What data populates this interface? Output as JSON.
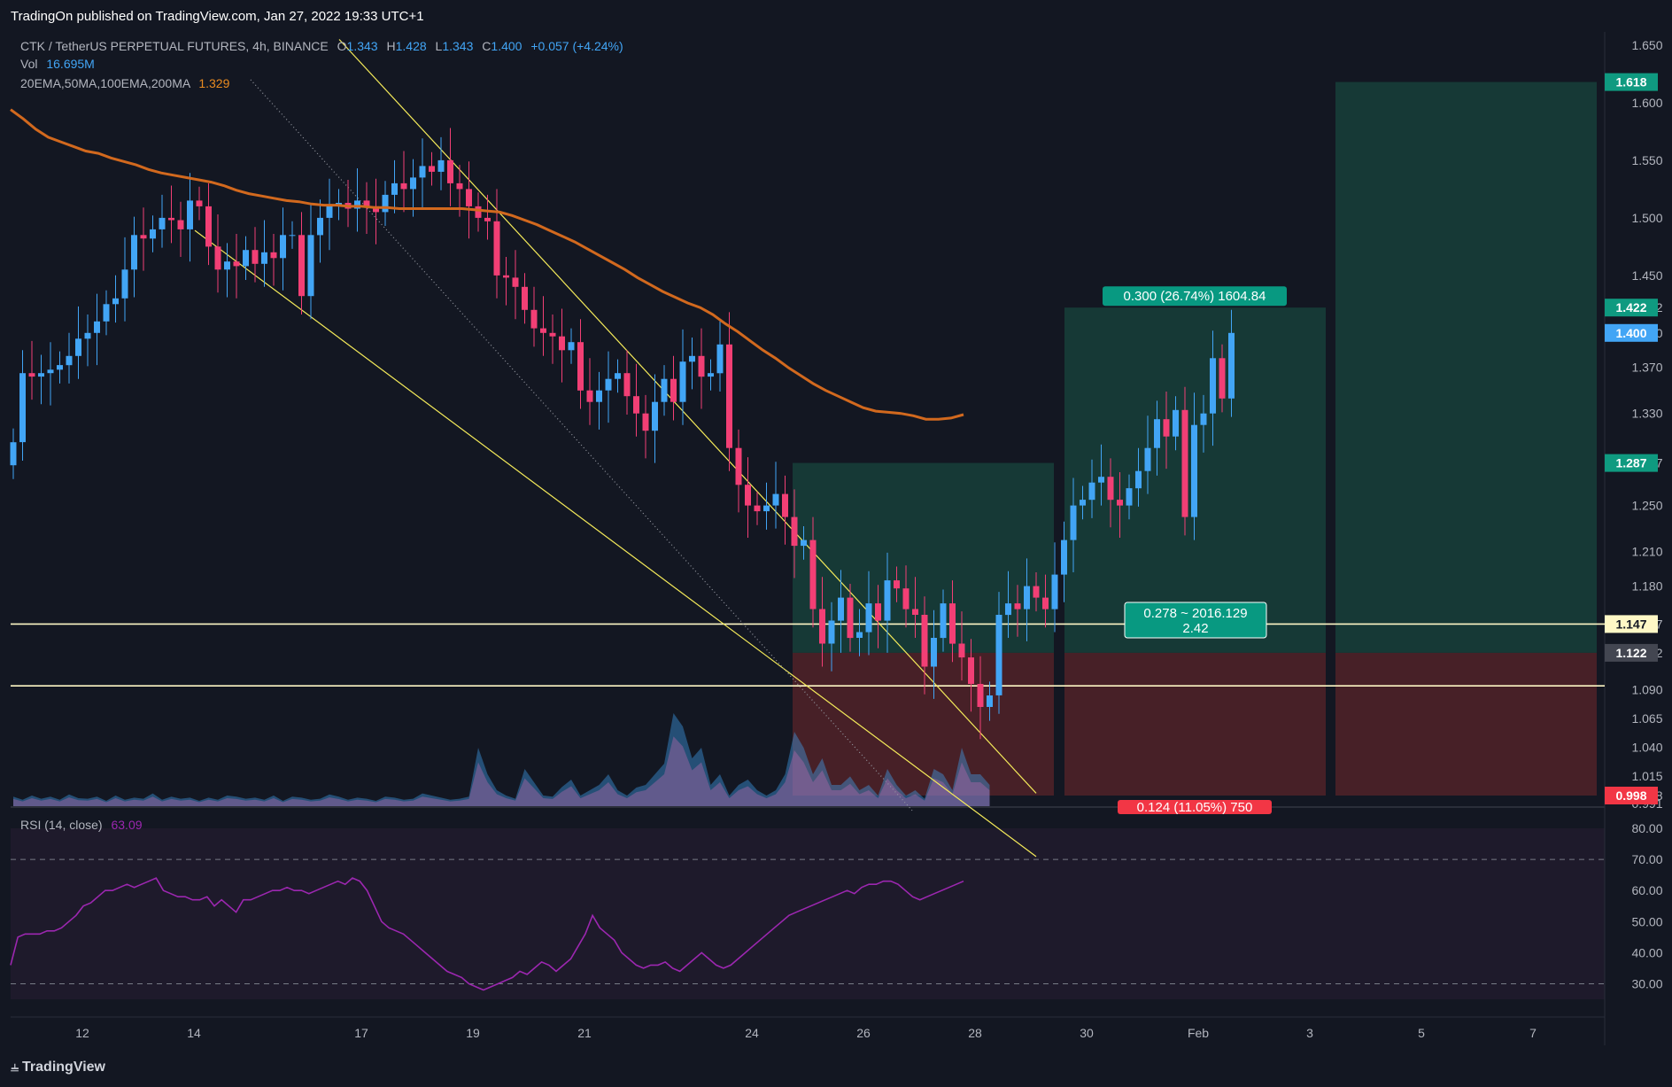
{
  "header": {
    "publisher": "TradingOn published on TradingView.com, Jan 27, 2022 19:33 UTC+1"
  },
  "legend": {
    "symbol": "CTK / TetherUS PERPETUAL FUTURES, 4h, BINANCE",
    "o_label": "O",
    "o_value": "1.343",
    "h_label": "H",
    "h_value": "1.428",
    "l_label": "L",
    "l_value": "1.343",
    "c_label": "C",
    "c_value": "1.400",
    "change": "+0.057 (+4.24%)",
    "vol_label": "Vol",
    "vol_value": "16.695M",
    "ma_label": "20EMA,50MA,100EMA,200MA",
    "ma_value": "1.329",
    "rsi_label": "RSI (14, close)",
    "rsi_value": "63.09"
  },
  "footer": {
    "brand": "TradingView"
  },
  "colors": {
    "background": "#131722",
    "up": "#42a5f5",
    "down": "#f23f75",
    "ma": "#d2691e",
    "channel": "#f5eb5a",
    "rsi": "#9c27b0",
    "target_zone": "#163b38",
    "stop_zone": "#4a2128",
    "hline": "#fff8c6"
  },
  "chart_data": {
    "type": "candlestick",
    "title": "CTK / TetherUS PERPETUAL FUTURES, 4h, BINANCE",
    "interval": "4h",
    "price_axis": {
      "ticks": [
        "1.650",
        "1.600",
        "1.550",
        "1.500",
        "1.450",
        "1.422",
        "1.400",
        "1.370",
        "1.330",
        "1.287",
        "1.250",
        "1.210",
        "1.180",
        "1.147",
        "1.122",
        "1.090",
        "1.065",
        "1.040",
        "1.015",
        "0.998",
        "0.991"
      ],
      "range": [
        0.975,
        1.665
      ]
    },
    "time_axis": {
      "ticks": [
        "12",
        "14",
        "17",
        "19",
        "21",
        "24",
        "26",
        "28",
        "30",
        "Feb",
        "3",
        "5",
        "7"
      ]
    },
    "price_labels": [
      {
        "text": "1.618",
        "value": 1.618,
        "color": "#0f9a80"
      },
      {
        "text": "1.422",
        "value": 1.422,
        "color": "#0f9a80"
      },
      {
        "text": "1.400",
        "value": 1.4,
        "color": "#42a5f5"
      },
      {
        "text": "1.287",
        "value": 1.287,
        "color": "#0f9a80"
      },
      {
        "text": "1.147",
        "value": 1.147,
        "color": "#fff8c6"
      },
      {
        "text": "1.122",
        "value": 1.122,
        "color": "#434651"
      },
      {
        "text": "0.998",
        "value": 0.998,
        "color": "#f23645"
      }
    ],
    "horizontal_lines": [
      1.147,
      1.0933
    ],
    "closes": [
      1.305,
      1.365,
      1.362,
      1.365,
      1.368,
      1.372,
      1.38,
      1.395,
      1.4,
      1.41,
      1.425,
      1.43,
      1.455,
      1.485,
      1.482,
      1.49,
      1.5,
      1.498,
      1.49,
      1.515,
      1.51,
      1.475,
      1.455,
      1.462,
      1.458,
      1.472,
      1.46,
      1.47,
      1.465,
      1.485,
      1.485,
      1.432,
      1.485,
      1.5,
      1.51,
      1.513,
      1.508,
      1.515,
      1.51,
      1.505,
      1.52,
      1.53,
      1.525,
      1.535,
      1.545,
      1.54,
      1.55,
      1.53,
      1.525,
      1.51,
      1.5,
      1.497,
      1.45,
      1.448,
      1.44,
      1.42,
      1.404,
      1.4,
      1.397,
      1.385,
      1.392,
      1.35,
      1.34,
      1.35,
      1.36,
      1.365,
      1.345,
      1.33,
      1.315,
      1.34,
      1.36,
      1.34,
      1.375,
      1.38,
      1.362,
      1.365,
      1.39,
      1.3,
      1.268,
      1.25,
      1.245,
      1.25,
      1.26,
      1.24,
      1.215,
      1.22,
      1.16,
      1.13,
      1.15,
      1.17,
      1.135,
      1.14,
      1.165,
      1.15,
      1.185,
      1.178,
      1.16,
      1.155,
      1.11,
      1.135,
      1.165,
      1.13,
      1.118,
      1.095,
      1.075,
      1.085,
      1.155,
      1.165,
      1.16,
      1.18,
      1.17,
      1.16,
      1.19,
      1.22,
      1.25,
      1.255,
      1.27,
      1.275,
      1.255,
      1.25,
      1.265,
      1.28,
      1.3,
      1.325,
      1.31,
      1.333,
      1.24,
      1.32,
      1.33,
      1.378,
      1.343,
      1.4
    ],
    "ma": [
      1.594,
      1.586,
      1.577,
      1.57,
      1.566,
      1.562,
      1.558,
      1.556,
      1.552,
      1.549,
      1.546,
      1.542,
      1.539,
      1.537,
      1.535,
      1.533,
      1.531,
      1.528,
      1.524,
      1.521,
      1.519,
      1.517,
      1.515,
      1.514,
      1.512,
      1.511,
      1.511,
      1.51,
      1.51,
      1.509,
      1.509,
      1.508,
      1.508,
      1.508,
      1.508,
      1.508,
      1.508,
      1.507,
      1.506,
      1.505,
      1.502,
      1.498,
      1.494,
      1.489,
      1.484,
      1.479,
      1.473,
      1.467,
      1.461,
      1.455,
      1.448,
      1.442,
      1.436,
      1.431,
      1.426,
      1.422,
      1.416,
      1.408,
      1.401,
      1.393,
      1.385,
      1.378,
      1.37,
      1.363,
      1.356,
      1.35,
      1.345,
      1.34,
      1.335,
      1.332,
      1.331,
      1.33,
      1.328,
      1.325,
      1.325,
      1.326,
      1.329
    ],
    "volume": {
      "peak_label": "volume bars overlaid at bottom of price pane"
    },
    "channel": [
      {
        "from": [
          220,
          1.489
        ],
        "to": [
          1170,
          0.945
        ]
      },
      {
        "from": [
          383,
          1.655
        ],
        "to": [
          1170,
          1.0
        ]
      }
    ],
    "positions": [
      {
        "entry": 1.122,
        "target": 1.287,
        "stop": 0.998
      },
      {
        "entry": 1.122,
        "target": 1.422,
        "stop": 0.998,
        "target_label": "0.300 (26.74%) 1604.84",
        "stop_label": "0.124 (11.05%) 750",
        "mid_label_1": "0.278 ~ 2016.129",
        "mid_label_2": "2.42"
      },
      {
        "entry": 1.122,
        "target": 1.618,
        "stop": 0.998
      }
    ],
    "rsi": {
      "label": "RSI (14, close)",
      "levels": [
        "70.00",
        "60.00",
        "50.00",
        "40.00",
        "30.00"
      ],
      "band_top": "80.00",
      "overbought": 70,
      "oversold": 30,
      "range": [
        20,
        84
      ],
      "values": [
        36,
        45,
        46,
        46,
        46,
        47,
        47,
        48,
        50,
        52,
        55,
        56,
        58,
        60,
        60,
        61,
        62,
        61,
        62,
        63,
        64,
        60,
        59,
        58,
        58,
        57,
        57,
        58,
        55,
        57,
        55,
        53,
        57,
        57,
        58,
        59,
        60,
        60,
        61,
        60,
        60,
        59,
        60,
        61,
        62,
        63,
        62,
        64,
        63,
        60,
        55,
        50,
        48,
        47,
        46,
        44,
        42,
        40,
        38,
        36,
        34,
        33,
        32,
        30,
        29,
        28,
        29,
        30,
        31,
        32,
        34,
        33,
        35,
        37,
        36,
        34,
        36,
        38,
        42,
        46,
        52,
        48,
        46,
        44,
        40,
        38,
        36,
        35,
        36,
        36,
        37,
        35,
        34,
        36,
        38,
        40,
        38,
        36,
        35,
        36,
        38,
        40,
        42,
        44,
        46,
        48,
        50,
        52,
        53,
        54,
        55,
        56,
        57,
        58,
        59,
        60,
        59,
        61,
        62,
        62,
        63,
        63,
        62,
        60,
        58,
        57,
        58,
        59,
        60,
        61,
        62,
        63
      ]
    }
  }
}
